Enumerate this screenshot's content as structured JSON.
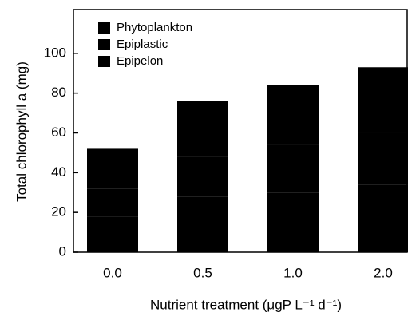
{
  "chart_data": {
    "type": "stacked_bar",
    "categories": [
      "0.0",
      "0.5",
      "1.0",
      "2.0"
    ],
    "series": [
      {
        "name": "Phytoplankton",
        "color": "#000000",
        "values": [
          18,
          28,
          30,
          34
        ]
      },
      {
        "name": "Epiplastic",
        "color": "#000000",
        "values": [
          14,
          20,
          24,
          26
        ]
      },
      {
        "name": "Epipelon",
        "color": "#000000",
        "values": [
          20,
          28,
          30,
          33
        ]
      }
    ],
    "x_label": "Nutrient treatment (μgP L⁻¹ d⁻¹)",
    "y_label": "Total chlorophyll a (mg)",
    "ylim": [
      0,
      122
    ],
    "yticks": [
      0,
      20,
      40,
      60,
      80,
      100
    ],
    "legend": "upper left",
    "grid": false
  }
}
